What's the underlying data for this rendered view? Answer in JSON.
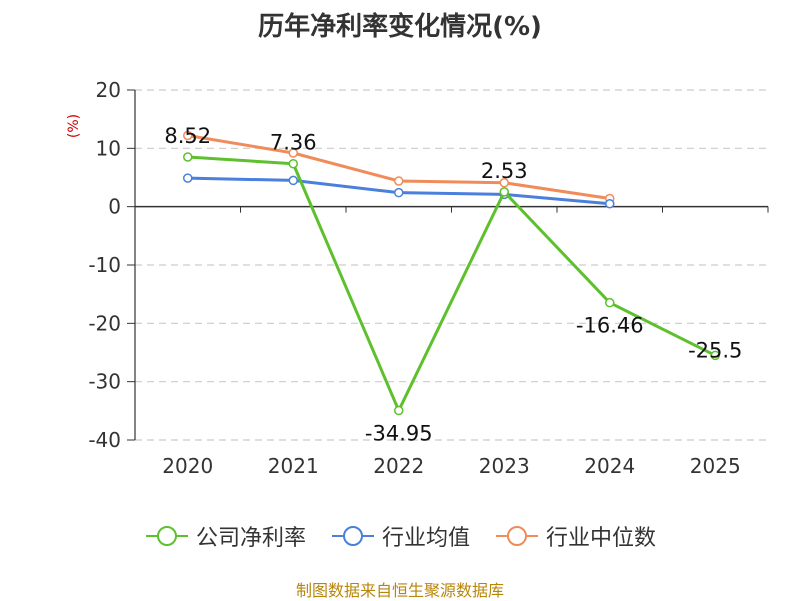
{
  "chart_data": {
    "type": "line",
    "title": "历年净利率变化情况(%)",
    "ylabel": "(%)",
    "xlabel": "",
    "categories": [
      "2020",
      "2021",
      "2022",
      "2023",
      "2024",
      "2025"
    ],
    "ylim": [
      -40,
      20
    ],
    "yticks": [
      20,
      10,
      0,
      -10,
      -20,
      -30,
      -40
    ],
    "grid": true,
    "legend_position": "bottom",
    "series": [
      {
        "name": "公司净利率",
        "color": "#5dc02c",
        "values": [
          8.52,
          7.36,
          -34.95,
          2.53,
          -16.46,
          -25.5
        ],
        "labels": [
          "8.52",
          "7.36",
          "-34.95",
          "2.53",
          "-16.46",
          "-25.5"
        ]
      },
      {
        "name": "行业均值",
        "color": "#4a7fdc",
        "values": [
          4.9,
          4.5,
          2.4,
          2.1,
          0.5,
          null
        ]
      },
      {
        "name": "行业中位数",
        "color": "#f08c5a",
        "values": [
          12.2,
          9.2,
          4.4,
          4.1,
          1.4,
          null
        ]
      }
    ]
  },
  "source_note": "制图数据来自恒生聚源数据库"
}
